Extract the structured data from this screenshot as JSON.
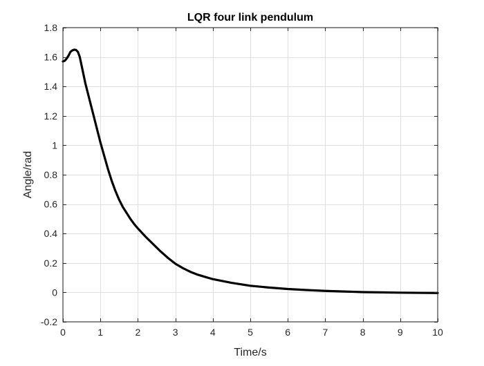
{
  "chart_data": {
    "type": "line",
    "title": "LQR four link pendulum",
    "xlabel": "Time/s",
    "ylabel": "Angle/rad",
    "xlim": [
      0,
      10
    ],
    "ylim": [
      -0.2,
      1.8
    ],
    "xticks": [
      0,
      1,
      2,
      3,
      4,
      5,
      6,
      7,
      8,
      9,
      10
    ],
    "yticks": [
      -0.2,
      0,
      0.2,
      0.4,
      0.6,
      0.8,
      1,
      1.2,
      1.4,
      1.6,
      1.8
    ],
    "xtick_labels": [
      "0",
      "1",
      "2",
      "3",
      "4",
      "5",
      "6",
      "7",
      "8",
      "9",
      "10"
    ],
    "ytick_labels": [
      "-0.2",
      "0",
      "0.2",
      "0.4",
      "0.6",
      "0.8",
      "1",
      "1.2",
      "1.4",
      "1.6",
      "1.8"
    ],
    "grid": true,
    "line_color": "#000000",
    "series": [
      {
        "x": [
          0,
          0.05,
          0.1,
          0.15,
          0.2,
          0.25,
          0.3,
          0.35,
          0.4,
          0.45,
          0.5,
          0.6,
          0.7,
          0.8,
          0.9,
          1.0,
          1.1,
          1.2,
          1.3,
          1.4,
          1.5,
          1.6,
          1.7,
          1.8,
          1.9,
          2.0,
          2.2,
          2.4,
          2.6,
          2.8,
          3.0,
          3.2,
          3.4,
          3.6,
          3.8,
          4.0,
          4.5,
          5.0,
          5.5,
          6.0,
          6.5,
          7.0,
          7.5,
          8.0,
          8.5,
          9.0,
          9.5,
          10.0
        ],
        "y": [
          1.57,
          1.575,
          1.59,
          1.61,
          1.635,
          1.645,
          1.65,
          1.648,
          1.635,
          1.6,
          1.54,
          1.42,
          1.32,
          1.22,
          1.12,
          1.02,
          0.93,
          0.84,
          0.76,
          0.69,
          0.63,
          0.58,
          0.54,
          0.5,
          0.465,
          0.435,
          0.38,
          0.33,
          0.28,
          0.235,
          0.195,
          0.165,
          0.14,
          0.12,
          0.105,
          0.09,
          0.065,
          0.045,
          0.033,
          0.023,
          0.016,
          0.01,
          0.006,
          0.002,
          0,
          -0.002,
          -0.003,
          -0.004
        ]
      }
    ]
  }
}
